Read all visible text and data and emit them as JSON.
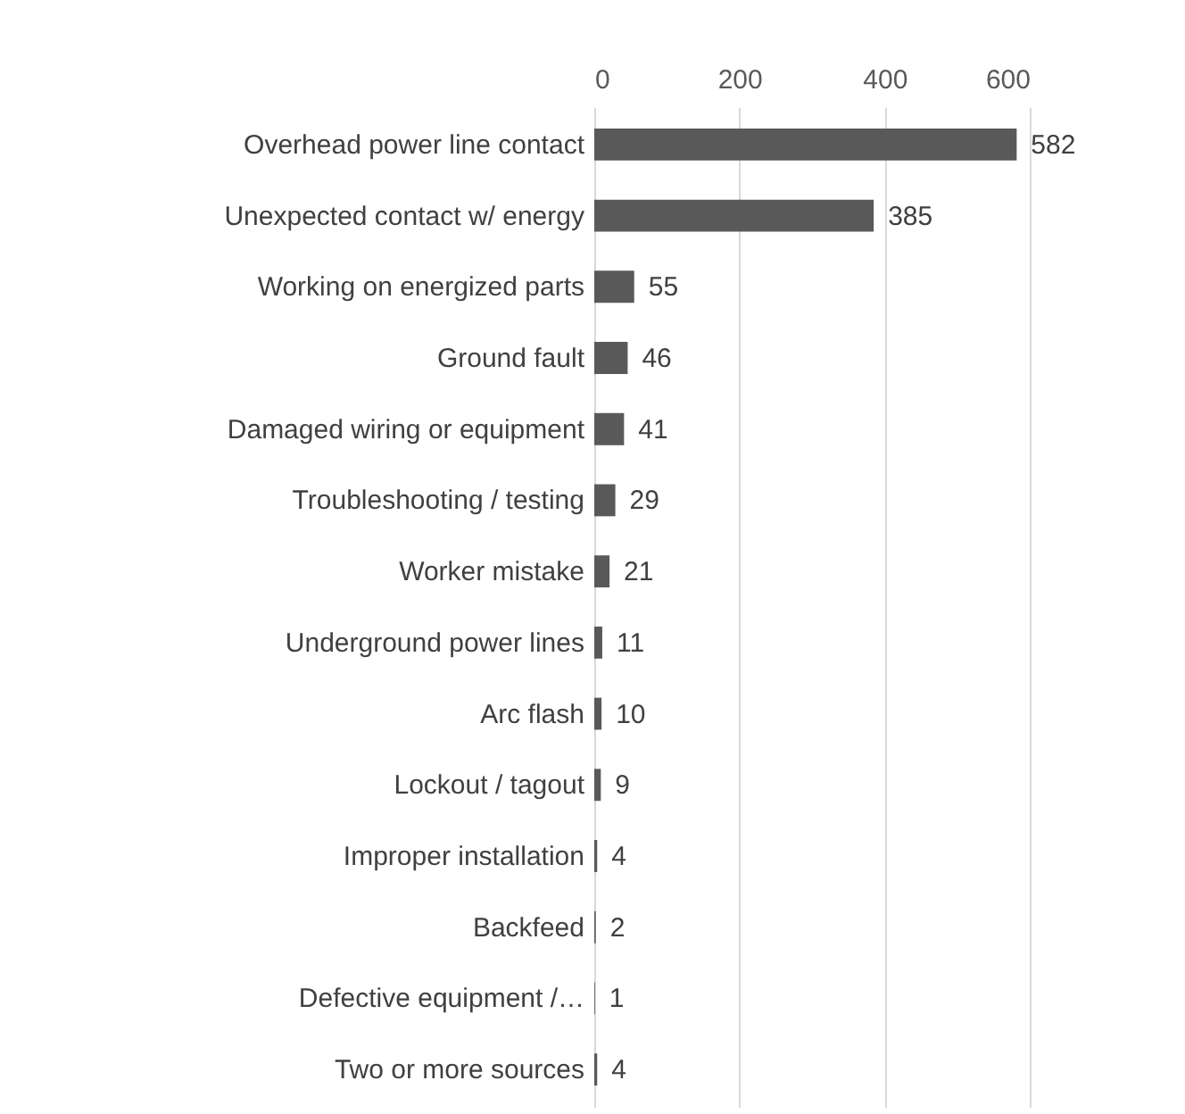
{
  "chart_data": {
    "type": "bar",
    "orientation": "horizontal",
    "categories": [
      "Overhead power line contact",
      "Unexpected contact w/ energy",
      "Working on energized parts",
      "Ground fault",
      "Damaged wiring or equipment",
      "Troubleshooting / testing",
      "Worker mistake",
      "Underground power lines",
      "Arc flash",
      "Lockout / tagout",
      "Improper installation",
      "Backfeed",
      "Defective equipment /…",
      "Two or more sources"
    ],
    "values": [
      582,
      385,
      55,
      46,
      41,
      29,
      21,
      11,
      10,
      9,
      4,
      2,
      1,
      4
    ],
    "color": "#595959",
    "xlim": [
      0,
      600
    ],
    "xticks": [
      0,
      200,
      400,
      600
    ],
    "grid": "x",
    "data_labels": true
  }
}
